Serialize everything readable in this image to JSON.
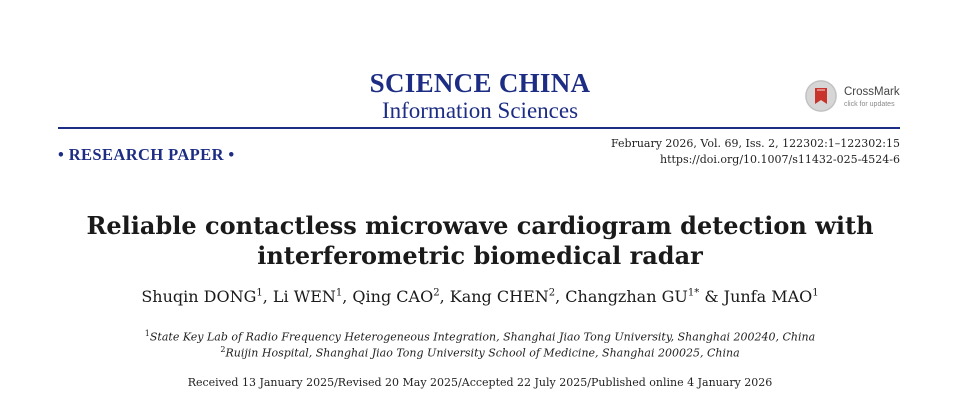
{
  "journal": {
    "title": "SCIENCE CHINA",
    "subtitle": "Information Sciences"
  },
  "crossmark": {
    "label": "CrossMark",
    "sublabel": "click for updates"
  },
  "category": "• RESEARCH PAPER •",
  "publication": {
    "issue_line": "February 2026, Vol. 69, Iss. 2, 122302:1–122302:15",
    "doi": "https://doi.org/10.1007/s11432-025-4524-6"
  },
  "paper": {
    "title_line1": "Reliable contactless microwave cardiogram detection with",
    "title_line2": "interferometric biomedical radar"
  },
  "authors": [
    {
      "name": "Shuqin DONG",
      "sup": "1",
      "sep": ", "
    },
    {
      "name": "Li WEN",
      "sup": "1",
      "sep": ", "
    },
    {
      "name": "Qing CAO",
      "sup": "2",
      "sep": ", "
    },
    {
      "name": "Kang CHEN",
      "sup": "2",
      "sep": ", "
    },
    {
      "name": "Changzhan GU",
      "sup": "1*",
      "sep": " & "
    },
    {
      "name": "Junfa MAO",
      "sup": "1",
      "sep": ""
    }
  ],
  "affiliations": [
    {
      "sup": "1",
      "text": "State Key Lab of Radio Frequency Heterogeneous Integration, Shanghai Jiao Tong University, Shanghai 200240, China"
    },
    {
      "sup": "2",
      "text": "Ruijin Hospital, Shanghai Jiao Tong University School of Medicine, Shanghai 200025, China"
    }
  ],
  "history": "Received 13 January 2025/Revised 20 May 2025/Accepted 22 July 2025/Published online 4 January 2026",
  "colors": {
    "journal_blue": "#1d2d84",
    "crossmark_red": "#c8332b"
  }
}
